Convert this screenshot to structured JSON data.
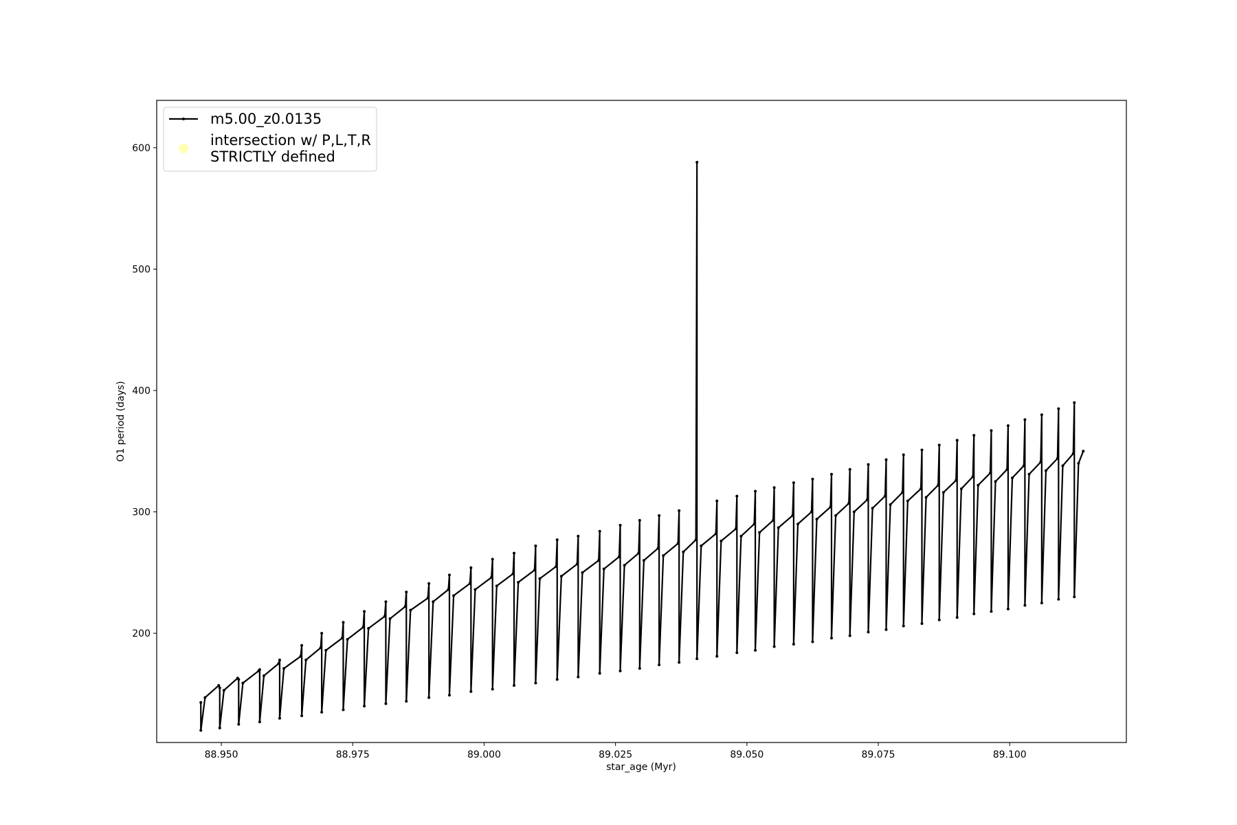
{
  "chart_data": {
    "type": "line",
    "xlabel": "star_age (Myr)",
    "ylabel": "O1 period (days)",
    "xlim": [
      88.9377,
      89.1222
    ],
    "ylim": [
      110,
      639
    ],
    "xticks": [
      {
        "value": 88.95,
        "label": "88.950"
      },
      {
        "value": 88.975,
        "label": "88.975"
      },
      {
        "value": 89.0,
        "label": "89.000"
      },
      {
        "value": 89.025,
        "label": "89.025"
      },
      {
        "value": 89.05,
        "label": "89.050"
      },
      {
        "value": 89.075,
        "label": "89.075"
      },
      {
        "value": 89.1,
        "label": "89.100"
      }
    ],
    "yticks": [
      200,
      300,
      400,
      500,
      600
    ],
    "grid": false,
    "legend": "upper left",
    "series": [
      {
        "name": "m5.00_z0.0135",
        "color": "#000000",
        "marker": "dot",
        "x": [
          88.9461,
          88.9461,
          88.9469,
          88.9495,
          88.9497,
          88.9497,
          88.9505,
          88.9531,
          88.9533,
          88.9533,
          88.9541,
          88.9571,
          88.9573,
          88.9573,
          88.9581,
          88.9609,
          88.9611,
          88.9611,
          88.9619,
          88.9651,
          88.9653,
          88.9653,
          88.9661,
          88.9689,
          88.9691,
          88.9691,
          88.9699,
          88.973,
          88.9732,
          88.9732,
          88.974,
          88.977,
          88.9772,
          88.9772,
          88.978,
          88.9811,
          88.9813,
          88.9813,
          88.9821,
          88.985,
          88.9852,
          88.9852,
          88.986,
          88.9893,
          88.9895,
          88.9895,
          88.9903,
          88.9932,
          88.9934,
          88.9934,
          88.9942,
          88.9973,
          88.9975,
          88.9975,
          88.9983,
          89.0014,
          89.0016,
          89.0016,
          89.0024,
          89.0055,
          89.0057,
          89.0057,
          89.0065,
          89.0096,
          89.0098,
          89.0098,
          89.0106,
          89.0137,
          89.0139,
          89.0139,
          89.0147,
          89.0177,
          89.0179,
          89.0179,
          89.0187,
          89.0218,
          89.022,
          89.022,
          89.0228,
          89.0257,
          89.0259,
          89.0259,
          89.0267,
          89.0294,
          89.0296,
          89.0296,
          89.0304,
          89.0331,
          89.0333,
          89.0333,
          89.0341,
          89.0369,
          89.0371,
          89.0371,
          89.0379,
          89.0403,
          89.0405,
          89.0405,
          89.0413,
          89.0441,
          89.0443,
          89.0443,
          89.0451,
          89.0479,
          89.0481,
          89.0481,
          89.0489,
          89.0514,
          89.0516,
          89.0516,
          89.0524,
          89.055,
          89.0552,
          89.0552,
          89.056,
          89.0587,
          89.0589,
          89.0589,
          89.0597,
          89.0623,
          89.0625,
          89.0625,
          89.0633,
          89.0659,
          89.0661,
          89.0661,
          89.0669,
          89.0694,
          89.0696,
          89.0696,
          89.0704,
          89.0729,
          89.0731,
          89.0731,
          89.0739,
          89.0763,
          89.0765,
          89.0765,
          89.0773,
          89.0796,
          89.0798,
          89.0798,
          89.0806,
          89.0831,
          89.0833,
          89.0833,
          89.0841,
          89.0864,
          89.0866,
          89.0866,
          89.0874,
          89.0898,
          89.09,
          89.09,
          89.0908,
          89.093,
          89.0932,
          89.0932,
          89.094,
          89.0963,
          89.0965,
          89.0965,
          89.0973,
          89.0995,
          89.0997,
          89.0997,
          89.1005,
          89.1027,
          89.1029,
          89.1029,
          89.1037,
          89.1059,
          89.1061,
          89.1061,
          89.1069,
          89.1091,
          89.1093,
          89.1093,
          89.1101,
          89.1121,
          89.1123,
          89.1123,
          89.1131,
          89.114
        ],
        "values": [
          143,
          120,
          147,
          157,
          155,
          122,
          153,
          163,
          162,
          125,
          159,
          169,
          170,
          127,
          165,
          175,
          178,
          130,
          171,
          181,
          190,
          132,
          178,
          188,
          200,
          135,
          186,
          196,
          209,
          137,
          195,
          205,
          218,
          140,
          204,
          214,
          226,
          142,
          212,
          222,
          234,
          144,
          219,
          229,
          241,
          147,
          226,
          236,
          248,
          149,
          231,
          241,
          254,
          152,
          236,
          246,
          261,
          154,
          239,
          249,
          266,
          157,
          242,
          252,
          272,
          159,
          245,
          255,
          277,
          162,
          247,
          257,
          280,
          164,
          250,
          260,
          284,
          167,
          253,
          263,
          289,
          169,
          256,
          266,
          293,
          171,
          260,
          270,
          297,
          174,
          264,
          274,
          301,
          176,
          267,
          277,
          588,
          179,
          272,
          282,
          309,
          181,
          276,
          286,
          313,
          184,
          280,
          290,
          317,
          186,
          283,
          293,
          320,
          189,
          287,
          297,
          324,
          191,
          290,
          300,
          327,
          193,
          294,
          304,
          331,
          196,
          297,
          307,
          335,
          198,
          300,
          310,
          339,
          201,
          303,
          313,
          343,
          203,
          306,
          316,
          347,
          206,
          309,
          319,
          351,
          208,
          312,
          322,
          355,
          211,
          316,
          326,
          359,
          213,
          319,
          329,
          363,
          216,
          322,
          332,
          367,
          218,
          325,
          335,
          371,
          220,
          328,
          338,
          376,
          223,
          331,
          341,
          380,
          225,
          334,
          344,
          385,
          228,
          338,
          348,
          390,
          230,
          340,
          350
        ]
      },
      {
        "name": "intersection w/ P,L,T,R\nSTRICTLY defined",
        "color": "#ffffb3",
        "marker": "circle",
        "x": [],
        "values": []
      }
    ]
  }
}
